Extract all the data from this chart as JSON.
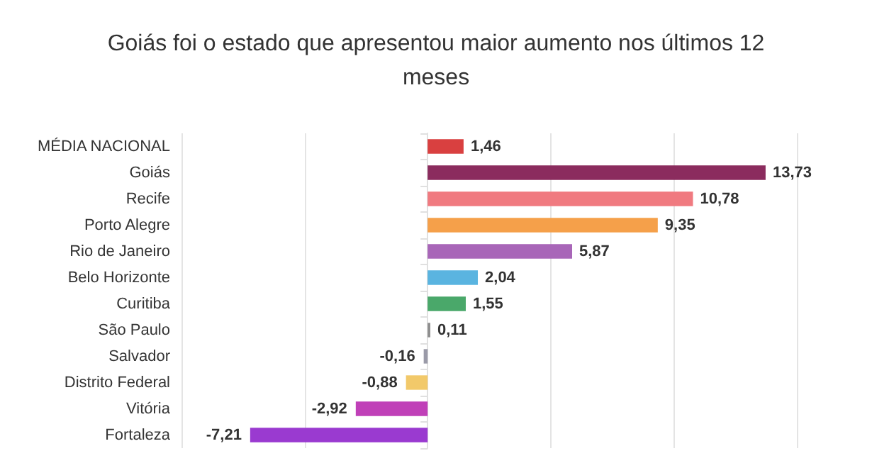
{
  "chart_data": {
    "type": "bar",
    "orientation": "horizontal",
    "title": "Goiás foi o estado que apresentou maior aumento nos últimos 12\nmeses",
    "categories": [
      "MÉDIA NACIONAL",
      "Goiás",
      "Recife",
      "Porto Alegre",
      "Rio de Janeiro",
      "Belo Horizonte",
      "Curitiba",
      "São Paulo",
      "Salvador",
      "Distrito Federal",
      "Vitória",
      "Fortaleza"
    ],
    "values": [
      1.46,
      13.73,
      10.78,
      9.35,
      5.87,
      2.04,
      1.55,
      0.11,
      -0.16,
      -0.88,
      -2.92,
      -7.21
    ],
    "value_labels": [
      "1,46",
      "13,73",
      "10,78",
      "9,35",
      "5,87",
      "2,04",
      "1,55",
      "0,11",
      "-0,16",
      "-0,88",
      "-2,92",
      "-7,21"
    ],
    "colors": [
      "#d94040",
      "#8b2c5e",
      "#f07a80",
      "#f5a04a",
      "#a866b8",
      "#5ab4e0",
      "#4aa86a",
      "#8e8e8e",
      "#9a9aa8",
      "#f2c96a",
      "#c040b8",
      "#9a3ad0"
    ],
    "grid": "x",
    "tick_labels": "y"
  }
}
